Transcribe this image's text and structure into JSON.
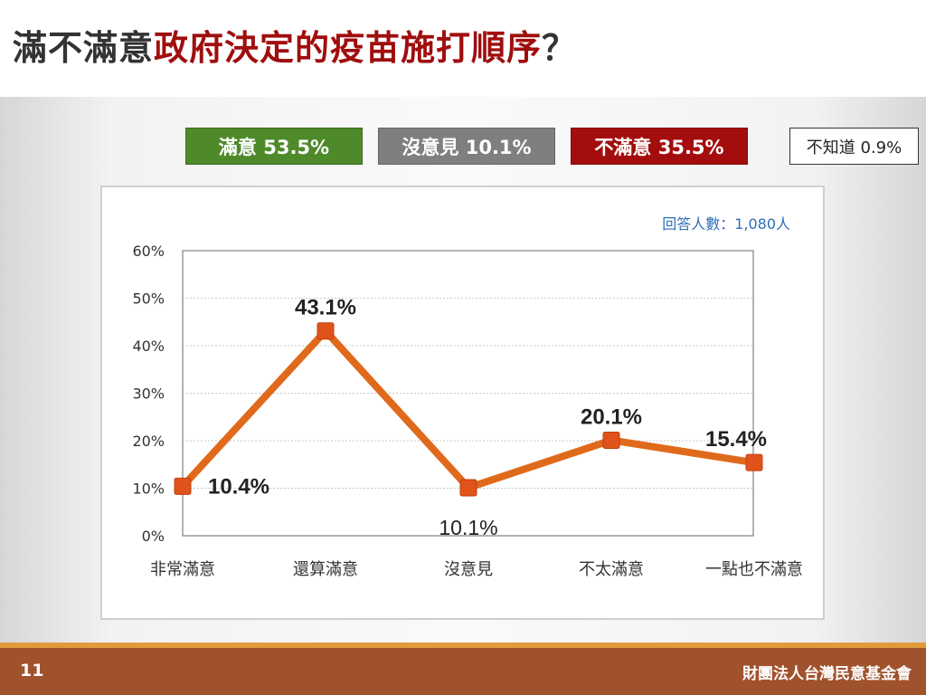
{
  "slide": {
    "title_prefix": "滿不滿意",
    "title_accent": "政府決定的疫苗施打順序",
    "title_suffix": "？",
    "page_number": "11",
    "organization": "財團法人台灣民意基金會"
  },
  "summary": {
    "satisfied": "滿意 53.5%",
    "no_opinion": "沒意見 10.1%",
    "dissatisfied": "不滿意 35.5%",
    "dont_know": "不知道 0.9%"
  },
  "colors": {
    "satisfied": "#4e8a2a",
    "no_opinion": "#7f7f7f",
    "dissatisfied": "#a40d0d",
    "line": "#e06a1b",
    "marker": "#e0531b"
  },
  "chart_data": {
    "type": "line",
    "title": "",
    "xlabel": "",
    "ylabel": "",
    "sample_note": "回答人數：1,080人",
    "categories": [
      "非常滿意",
      "還算滿意",
      "沒意見",
      "不太滿意",
      "一點也不滿意"
    ],
    "values": [
      10.4,
      43.1,
      10.1,
      20.1,
      15.4
    ],
    "data_labels": [
      "10.4%",
      "43.1%",
      "10.1%",
      "20.1%",
      "15.4%"
    ],
    "ylim": [
      0,
      60
    ],
    "y_ticks": [
      0,
      10,
      20,
      30,
      40,
      50,
      60
    ],
    "y_tick_labels": [
      "0%",
      "10%",
      "20%",
      "30%",
      "40%",
      "50%",
      "60%"
    ],
    "grid": true,
    "legend": "none"
  }
}
